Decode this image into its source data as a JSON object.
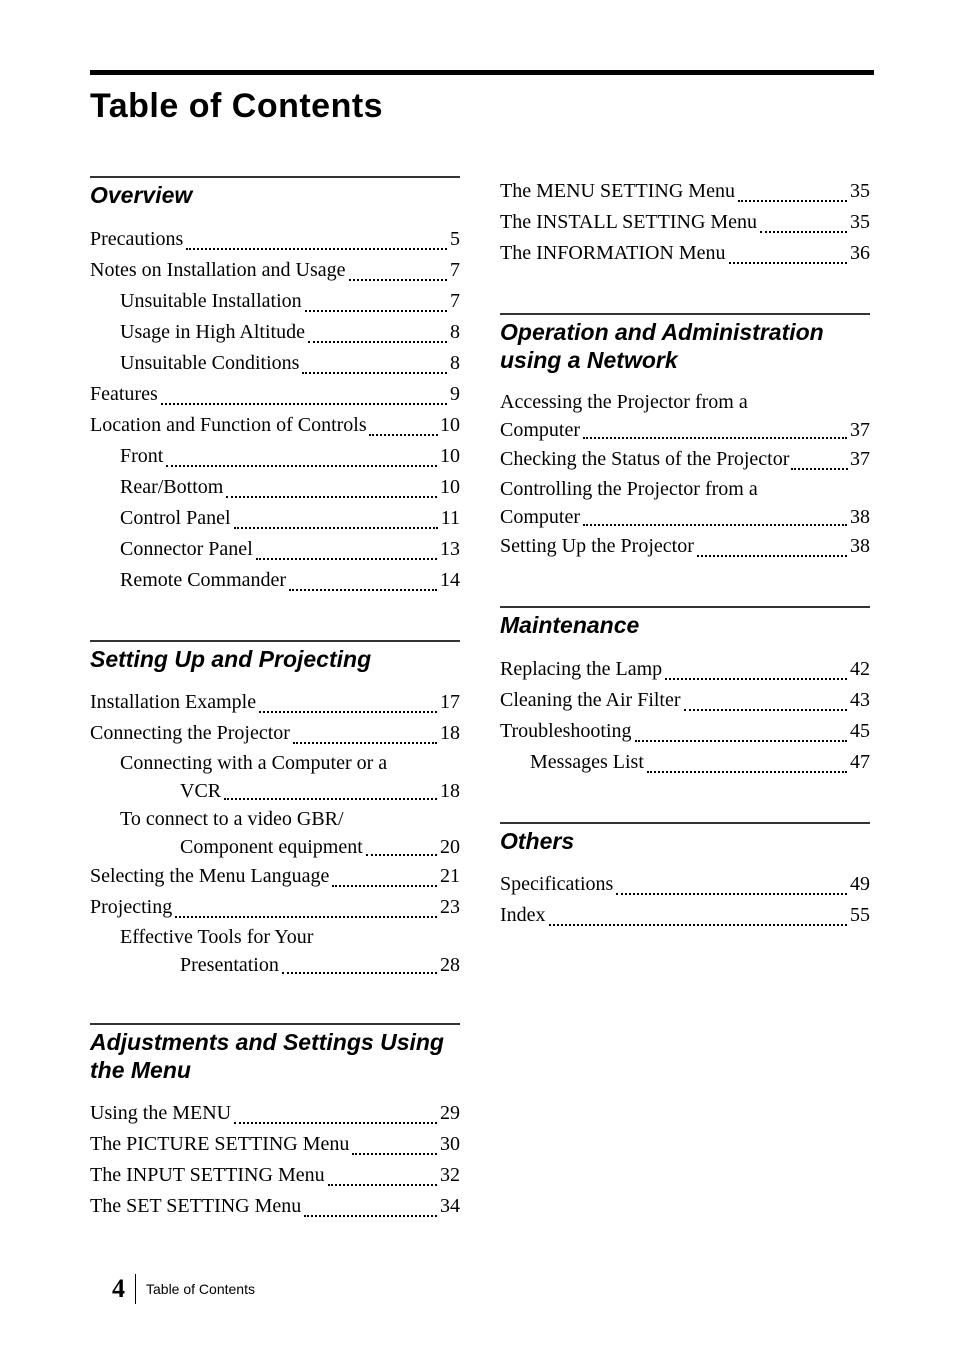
{
  "title": "Table of Contents",
  "footer": {
    "page": "4",
    "label": "Table of Contents"
  },
  "left_sections": [
    {
      "heading": "Overview",
      "entries": [
        {
          "label": "Precautions",
          "page": "5",
          "level": 0
        },
        {
          "label": "Notes on Installation and Usage",
          "page": "7",
          "level": 0
        },
        {
          "label": "Unsuitable Installation",
          "page": "7",
          "level": 1
        },
        {
          "label": "Usage in High Altitude",
          "page": "8",
          "level": 1
        },
        {
          "label": "Unsuitable Conditions",
          "page": "8",
          "level": 1
        },
        {
          "label": "Features",
          "page": "9",
          "level": 0
        },
        {
          "label": "Location and Function of Controls",
          "page": "10",
          "level": 0,
          "tight": true
        },
        {
          "label": "Front",
          "page": "10",
          "level": 1
        },
        {
          "label": "Rear/Bottom",
          "page": "10",
          "level": 1
        },
        {
          "label": "Control Panel",
          "page": "11",
          "level": 1
        },
        {
          "label": "Connector Panel",
          "page": "13",
          "level": 1
        },
        {
          "label": "Remote Commander",
          "page": "14",
          "level": 1
        }
      ]
    },
    {
      "heading": "Setting Up and Projecting",
      "entries": [
        {
          "label": "Installation Example",
          "page": "17",
          "level": 0
        },
        {
          "label": "Connecting the Projector",
          "page": "18",
          "level": 0
        },
        {
          "wrap": true,
          "level": 1,
          "line1": "Connecting with a Computer or a",
          "line2_indent": 60,
          "line2_label": "VCR",
          "page": "18"
        },
        {
          "wrap": true,
          "level": 1,
          "line1": "To connect to a video GBR/",
          "line2_indent": 60,
          "line2_label": "Component equipment",
          "page": "20"
        },
        {
          "label": "Selecting the Menu Language",
          "page": "21",
          "level": 0
        },
        {
          "label": "Projecting",
          "page": "23",
          "level": 0
        },
        {
          "wrap": true,
          "level": 1,
          "line1": "Effective Tools for Your",
          "line2_indent": 60,
          "line2_label": "Presentation",
          "page": "28"
        }
      ]
    },
    {
      "heading": "Adjustments and Settings Using the Menu",
      "entries": [
        {
          "label": "Using the MENU",
          "page": "29",
          "level": 0
        },
        {
          "label": "The PICTURE SETTING Menu",
          "page": "30",
          "level": 0
        },
        {
          "label": "The INPUT SETTING Menu",
          "page": "32",
          "level": 0
        },
        {
          "label": "The SET SETTING Menu",
          "page": "34",
          "level": 0
        }
      ]
    }
  ],
  "right_sections": [
    {
      "heading": null,
      "entries": [
        {
          "label": "The MENU SETTING Menu",
          "page": "35",
          "level": 0
        },
        {
          "label": "The INSTALL SETTING Menu",
          "page": "35",
          "level": 0
        },
        {
          "label": "The INFORMATION Menu",
          "page": "36",
          "level": 0
        }
      ]
    },
    {
      "heading": "Operation and Administration using a Network",
      "entries": [
        {
          "wrap": true,
          "level": 0,
          "line1": "Accessing the Projector from a",
          "line2_indent": 0,
          "line2_label": "Computer",
          "page": "37"
        },
        {
          "label": "Checking the Status of the Projector",
          "page": "37",
          "level": 0,
          "tight": true
        },
        {
          "wrap": true,
          "level": 0,
          "line1": "Controlling the Projector from a",
          "line2_indent": 0,
          "line2_label": "Computer",
          "page": "38"
        },
        {
          "label": "Setting Up the Projector",
          "page": "38",
          "level": 0
        }
      ]
    },
    {
      "heading": "Maintenance",
      "entries": [
        {
          "label": "Replacing the Lamp",
          "page": "42",
          "level": 0
        },
        {
          "label": "Cleaning the Air Filter",
          "page": "43",
          "level": 0
        },
        {
          "label": "Troubleshooting",
          "page": "45",
          "level": 0
        },
        {
          "label": "Messages List",
          "page": "47",
          "level": 1
        }
      ]
    },
    {
      "heading": "Others",
      "entries": [
        {
          "label": "Specifications",
          "page": "49",
          "level": 0
        },
        {
          "label": "Index",
          "page": "55",
          "level": 0
        }
      ]
    }
  ]
}
